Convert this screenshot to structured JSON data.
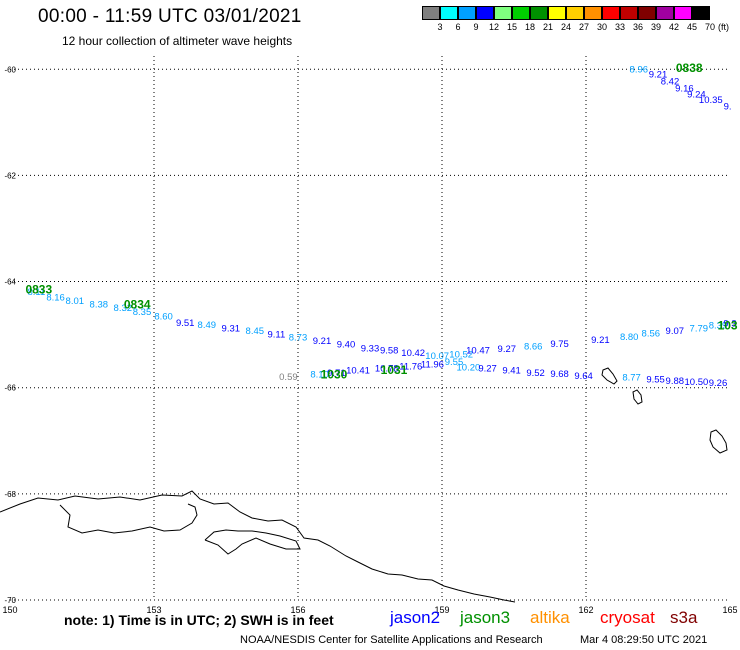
{
  "header": {
    "title": "00:00 - 11:59 UTC 03/01/2021",
    "subtitle": "12 hour collection of altimeter wave heights"
  },
  "legend": {
    "colors": [
      "#7f7f7f",
      "#00ffff",
      "#00a0ff",
      "#0000ff",
      "#7fff7f",
      "#00d000",
      "#009000",
      "#ffff00",
      "#ffd000",
      "#ff9000",
      "#ff0000",
      "#c00000",
      "#800000",
      "#a000a0",
      "#ff00ff",
      "#000000"
    ],
    "labels": [
      "3",
      "6",
      "9",
      "12",
      "15",
      "18",
      "21",
      "24",
      "27",
      "30",
      "33",
      "36",
      "39",
      "42",
      "45",
      "70"
    ],
    "units": "(ft)"
  },
  "map": {
    "lon_labels": [
      "150",
      "153",
      "156",
      "159",
      "162",
      "165"
    ],
    "lat_labels": [
      "-60",
      "-62",
      "-64",
      "-66",
      "-68",
      "-70"
    ],
    "coastline_color": "#000000"
  },
  "chart_data": {
    "type": "scatter",
    "xlim": [
      150,
      165
    ],
    "ylim": [
      -70,
      -59.75
    ],
    "annotations": [
      {
        "text": "8.11",
        "x": 150.55,
        "y": -64.2,
        "color": "#00a0ff"
      },
      {
        "text": "8.16",
        "x": 150.95,
        "y": -64.3,
        "color": "#00a0ff"
      },
      {
        "text": "8.01",
        "x": 151.35,
        "y": -64.37,
        "color": "#00a0ff"
      },
      {
        "text": "8.38",
        "x": 151.85,
        "y": -64.43,
        "color": "#00a0ff"
      },
      {
        "text": "8.32",
        "x": 152.35,
        "y": -64.5,
        "color": "#00a0ff"
      },
      {
        "text": "8.35",
        "x": 152.75,
        "y": -64.57,
        "color": "#00a0ff"
      },
      {
        "text": "8.60",
        "x": 153.2,
        "y": -64.66,
        "color": "#00a0ff"
      },
      {
        "text": "9.51",
        "x": 153.65,
        "y": -64.78,
        "color": "#0000ff"
      },
      {
        "text": "8.49",
        "x": 154.1,
        "y": -64.82,
        "color": "#00a0ff"
      },
      {
        "text": "9.31",
        "x": 154.6,
        "y": -64.88,
        "color": "#0000ff"
      },
      {
        "text": "8.45",
        "x": 155.1,
        "y": -64.93,
        "color": "#00a0ff"
      },
      {
        "text": "9.11",
        "x": 155.55,
        "y": -65.0,
        "color": "#0000ff"
      },
      {
        "text": "8.73",
        "x": 156.0,
        "y": -65.05,
        "color": "#00a0ff"
      },
      {
        "text": "9.21",
        "x": 156.5,
        "y": -65.12,
        "color": "#0000ff"
      },
      {
        "text": "9.40",
        "x": 157.0,
        "y": -65.19,
        "color": "#0000ff"
      },
      {
        "text": "9.33",
        "x": 157.5,
        "y": -65.26,
        "color": "#0000ff"
      },
      {
        "text": "9.58",
        "x": 157.9,
        "y": -65.3,
        "color": "#0000ff"
      },
      {
        "text": "10.42",
        "x": 158.4,
        "y": -65.35,
        "color": "#0000ff"
      },
      {
        "text": "10.07",
        "x": 158.9,
        "y": -65.4,
        "color": "#00a0ff"
      },
      {
        "text": "10.52",
        "x": 159.4,
        "y": -65.37,
        "color": "#00a0ff"
      },
      {
        "text": "10.47",
        "x": 159.75,
        "y": -65.3,
        "color": "#0000ff"
      },
      {
        "text": "9.27",
        "x": 160.35,
        "y": -65.27,
        "color": "#0000ff"
      },
      {
        "text": "8.66",
        "x": 160.9,
        "y": -65.22,
        "color": "#00a0ff"
      },
      {
        "text": "9.75",
        "x": 161.45,
        "y": -65.18,
        "color": "#0000ff"
      },
      {
        "text": "9.21",
        "x": 162.3,
        "y": -65.1,
        "color": "#0000ff"
      },
      {
        "text": "8.80",
        "x": 162.9,
        "y": -65.04,
        "color": "#00a0ff"
      },
      {
        "text": "8.56",
        "x": 163.35,
        "y": -64.98,
        "color": "#00a0ff"
      },
      {
        "text": "9.07",
        "x": 163.85,
        "y": -64.93,
        "color": "#0000ff"
      },
      {
        "text": "7.79",
        "x": 164.35,
        "y": -64.88,
        "color": "#00a0ff"
      },
      {
        "text": "8.39",
        "x": 164.75,
        "y": -64.83,
        "color": "#00a0ff"
      },
      {
        "text": "9.3",
        "x": 165.0,
        "y": -64.79,
        "color": "#0000ff"
      },
      {
        "text": "8.10",
        "x": 156.45,
        "y": -65.75,
        "color": "#00a0ff"
      },
      {
        "text": "9.71",
        "x": 156.8,
        "y": -65.72,
        "color": "#0000ff"
      },
      {
        "text": "10.41",
        "x": 157.25,
        "y": -65.68,
        "color": "#0000ff"
      },
      {
        "text": "10.78",
        "x": 157.85,
        "y": -65.64,
        "color": "#0000ff"
      },
      {
        "text": "11.76",
        "x": 158.35,
        "y": -65.6,
        "color": "#0000ff"
      },
      {
        "text": "11.96",
        "x": 158.8,
        "y": -65.56,
        "color": "#0000ff"
      },
      {
        "text": "9.55",
        "x": 159.25,
        "y": -65.52,
        "color": "#00a0ff"
      },
      {
        "text": "10.20",
        "x": 159.55,
        "y": -65.62,
        "color": "#00a0ff"
      },
      {
        "text": "9.27",
        "x": 159.95,
        "y": -65.64,
        "color": "#0000ff"
      },
      {
        "text": "9.41",
        "x": 160.45,
        "y": -65.68,
        "color": "#0000ff"
      },
      {
        "text": "9.52",
        "x": 160.95,
        "y": -65.72,
        "color": "#0000ff"
      },
      {
        "text": "9.68",
        "x": 161.45,
        "y": -65.74,
        "color": "#0000ff"
      },
      {
        "text": "9.64",
        "x": 161.95,
        "y": -65.78,
        "color": "#0000ff"
      },
      {
        "text": "8.77",
        "x": 162.95,
        "y": -65.81,
        "color": "#00a0ff"
      },
      {
        "text": "9.55",
        "x": 163.45,
        "y": -65.85,
        "color": "#0000ff"
      },
      {
        "text": "9.88",
        "x": 163.85,
        "y": -65.87,
        "color": "#0000ff"
      },
      {
        "text": "10.50",
        "x": 164.3,
        "y": -65.89,
        "color": "#0000ff"
      },
      {
        "text": "9.26",
        "x": 164.75,
        "y": -65.91,
        "color": "#0000ff"
      },
      {
        "text": "0.59",
        "x": 155.8,
        "y": -65.8,
        "color": "#7f7f7f"
      },
      {
        "text": "8.96",
        "x": 163.1,
        "y": -60.0,
        "color": "#00a0ff"
      },
      {
        "text": "9.21",
        "x": 163.5,
        "y": -60.1,
        "color": "#0000ff"
      },
      {
        "text": "8.42",
        "x": 163.75,
        "y": -60.23,
        "color": "#0000ff"
      },
      {
        "text": "9.16",
        "x": 164.05,
        "y": -60.36,
        "color": "#0000ff"
      },
      {
        "text": "9.24",
        "x": 164.3,
        "y": -60.48,
        "color": "#0000ff"
      },
      {
        "text": "10.35",
        "x": 164.6,
        "y": -60.58,
        "color": "#0000ff"
      },
      {
        "text": "9.",
        "x": 164.95,
        "y": -60.7,
        "color": "#0000ff"
      }
    ],
    "time_labels": [
      {
        "text": "0833",
        "x": 150.6,
        "y": -64.15
      },
      {
        "text": "0834",
        "x": 152.65,
        "y": -64.43
      },
      {
        "text": "1030",
        "x": 156.75,
        "y": -65.75
      },
      {
        "text": "1031",
        "x": 158.0,
        "y": -65.67
      },
      {
        "text": "0838",
        "x": 164.15,
        "y": -59.98
      },
      {
        "text": "103",
        "x": 164.95,
        "y": -64.83
      }
    ]
  },
  "footer": {
    "note": "note: 1) Time is in UTC; 2) SWH is in feet",
    "satellites": [
      {
        "name": "jason2",
        "color": "#0000ff"
      },
      {
        "name": "jason3",
        "color": "#009000"
      },
      {
        "name": "altika",
        "color": "#ff9000"
      },
      {
        "name": "cryosat",
        "color": "#ff0000"
      },
      {
        "name": "s3a",
        "color": "#800000"
      }
    ],
    "credit": "NOAA/NESDIS Center for Satellite Applications and Research",
    "timestamp": "Mar  4 08:29:50 UTC 2021"
  }
}
